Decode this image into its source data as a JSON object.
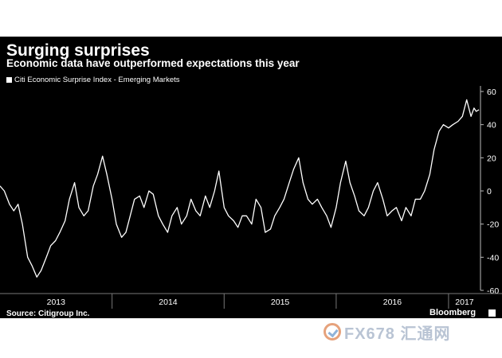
{
  "header": {
    "title": "Surging surprises",
    "subtitle": "Economic data have outperformed expectations this year"
  },
  "footer": {
    "source": "Source: Citigroup Inc.",
    "brand": "Bloomberg"
  },
  "watermark": {
    "text": "FX678 汇通网"
  },
  "colors": {
    "background": "#000000",
    "line": "#ffffff"
  },
  "chart_data": {
    "type": "line",
    "title": "Surging surprises",
    "subtitle": "Economic data have outperformed expectations this year",
    "xlabel": "",
    "ylabel": "",
    "ylim": [
      -60,
      60
    ],
    "xlim": [
      "2013-01-01",
      "2017-04-15"
    ],
    "y_axis_position": "right",
    "grid": false,
    "legend_position": "top-left",
    "y_ticks": [
      60,
      40,
      20,
      0,
      -20,
      -40,
      -60
    ],
    "x_tick_labels": [
      "2013",
      "2014",
      "2015",
      "2016",
      "2017"
    ],
    "series": [
      {
        "name": "Citi Economic Surprise Index - Emerging Markets",
        "x": [
          "2013-01-01",
          "2013-01-15",
          "2013-02-01",
          "2013-02-15",
          "2013-03-01",
          "2013-03-15",
          "2013-04-01",
          "2013-04-15",
          "2013-05-01",
          "2013-05-15",
          "2013-06-01",
          "2013-06-15",
          "2013-07-01",
          "2013-07-15",
          "2013-08-01",
          "2013-08-15",
          "2013-09-01",
          "2013-09-15",
          "2013-10-01",
          "2013-10-15",
          "2013-11-01",
          "2013-11-15",
          "2013-12-01",
          "2013-12-15",
          "2014-01-01",
          "2014-01-15",
          "2014-02-01",
          "2014-02-15",
          "2014-03-01",
          "2014-03-15",
          "2014-04-01",
          "2014-04-15",
          "2014-05-01",
          "2014-05-15",
          "2014-06-01",
          "2014-06-15",
          "2014-07-01",
          "2014-07-15",
          "2014-08-01",
          "2014-08-15",
          "2014-09-01",
          "2014-09-15",
          "2014-10-01",
          "2014-10-15",
          "2014-11-01",
          "2014-11-15",
          "2014-12-01",
          "2014-12-15",
          "2015-01-01",
          "2015-01-15",
          "2015-02-01",
          "2015-02-15",
          "2015-03-01",
          "2015-03-15",
          "2015-04-01",
          "2015-04-15",
          "2015-05-01",
          "2015-05-15",
          "2015-06-01",
          "2015-06-15",
          "2015-07-01",
          "2015-07-15",
          "2015-08-01",
          "2015-08-15",
          "2015-09-01",
          "2015-09-15",
          "2015-10-01",
          "2015-10-15",
          "2015-11-01",
          "2015-11-15",
          "2015-12-01",
          "2015-12-15",
          "2016-01-01",
          "2016-01-15",
          "2016-02-01",
          "2016-02-15",
          "2016-03-01",
          "2016-03-15",
          "2016-04-01",
          "2016-04-15",
          "2016-05-01",
          "2016-05-15",
          "2016-06-01",
          "2016-06-15",
          "2016-07-01",
          "2016-07-15",
          "2016-08-01",
          "2016-08-15",
          "2016-09-01",
          "2016-09-15",
          "2016-10-01",
          "2016-10-15",
          "2016-11-01",
          "2016-11-15",
          "2016-12-01",
          "2016-12-15",
          "2017-01-01",
          "2017-01-15",
          "2017-02-01",
          "2017-02-15",
          "2017-03-01",
          "2017-03-15",
          "2017-03-25",
          "2017-04-01",
          "2017-04-10"
        ],
        "values": [
          3,
          0,
          -8,
          -12,
          -8,
          -20,
          -40,
          -45,
          -52,
          -48,
          -40,
          -33,
          -30,
          -25,
          -18,
          -5,
          5,
          -10,
          -15,
          -12,
          3,
          10,
          21,
          10,
          -5,
          -20,
          -28,
          -25,
          -15,
          -5,
          -3,
          -10,
          0,
          -2,
          -15,
          -20,
          -25,
          -15,
          -10,
          -20,
          -15,
          -5,
          -12,
          -15,
          -3,
          -10,
          0,
          12,
          -10,
          -15,
          -18,
          -22,
          -15,
          -15,
          -20,
          -5,
          -10,
          -25,
          -23,
          -15,
          -10,
          -5,
          5,
          13,
          20,
          5,
          -5,
          -8,
          -5,
          -10,
          -15,
          -22,
          -10,
          5,
          18,
          5,
          -3,
          -12,
          -15,
          -10,
          0,
          5,
          -5,
          -15,
          -12,
          -10,
          -18,
          -10,
          -15,
          -5,
          -5,
          0,
          10,
          25,
          36,
          40,
          38,
          40,
          42,
          45,
          55,
          45,
          50,
          48,
          49
        ]
      }
    ]
  }
}
